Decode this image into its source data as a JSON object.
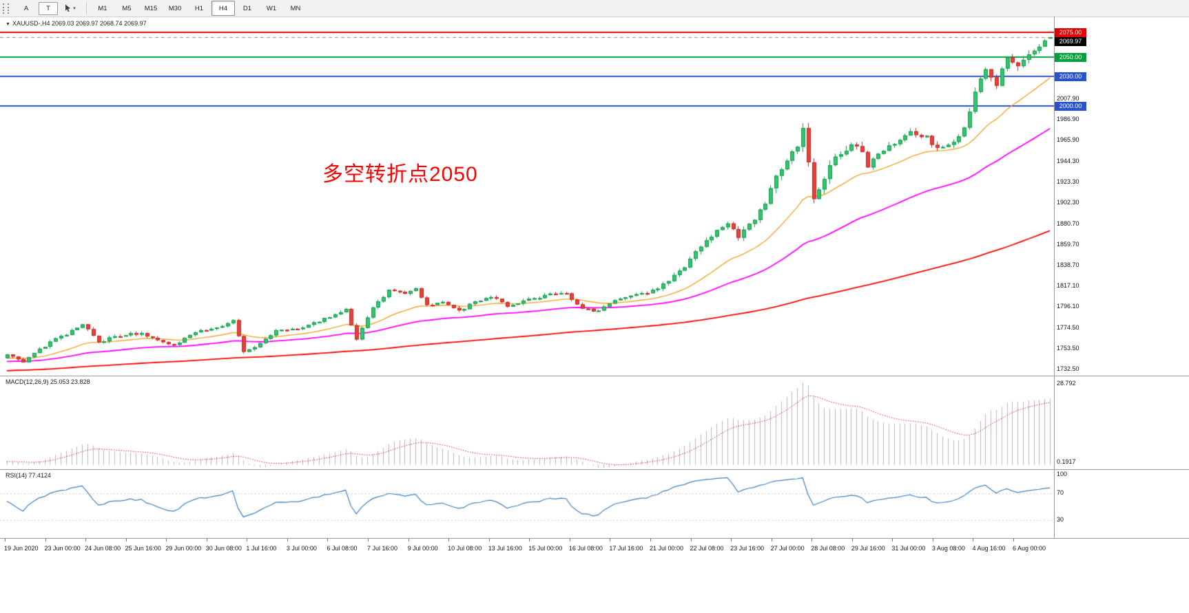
{
  "toolbar": {
    "tools": {
      "a_label": "A",
      "t_label": "T"
    },
    "timeframes": [
      "M1",
      "M5",
      "M15",
      "M30",
      "H1",
      "H4",
      "D1",
      "W1",
      "MN"
    ],
    "active_timeframe": "H4"
  },
  "header": {
    "marker": "▼",
    "symbol_ohlc": "XAUUSD-,H4  2069.03 2069.97 2068.74 2069.97"
  },
  "annotation": {
    "text": "多空转折点2050",
    "color": "#ff0000"
  },
  "macd_panel": {
    "header": "MACD(12,26,9) 25.053 23.828",
    "axis_labels": {
      "top": "28.792",
      "bottom": "0.1917"
    }
  },
  "rsi_panel": {
    "header": "RSI(14) 77.4124",
    "axis_labels": [
      "100",
      "70",
      "30"
    ]
  },
  "chart_data": {
    "type": "candlestick",
    "symbol": "XAUUSD-",
    "timeframe": "H4",
    "title": "XAUUSD- H4 chart with MACD and RSI",
    "grid": false,
    "ylim": [
      1726,
      2091
    ],
    "current_bar": {
      "open": 2069.03,
      "high": 2069.97,
      "low": 2068.74,
      "close": 2069.97
    },
    "current_price": {
      "price": 2069.97,
      "label": "2069.97",
      "badge_color": "#000000"
    },
    "levels": [
      {
        "price": 2075.0,
        "label": "2075.00",
        "color": "#e00000"
      },
      {
        "price": 2050.0,
        "label": "2050.00",
        "color": "#00a13a"
      },
      {
        "price": 2030.0,
        "label": "2030.00",
        "color": "#2a52cc"
      },
      {
        "price": 2000.0,
        "label": "2000.00",
        "color": "#2a52cc"
      }
    ],
    "price_axis_labels": [
      "2007.90",
      "1986.90",
      "1965.90",
      "1944.30",
      "1923.30",
      "1902.30",
      "1880.70",
      "1859.70",
      "1838.70",
      "1817.10",
      "1796.10",
      "1774.50",
      "1753.50",
      "1732.50"
    ],
    "x_labels": [
      "19 Jun 2020",
      "23 Jun 00:00",
      "24 Jun 08:00",
      "25 Jun 16:00",
      "29 Jun 00:00",
      "30 Jun 08:00",
      "1 Jul 16:00",
      "3 Jul 00:00",
      "6 Jul 08:00",
      "7 Jul 16:00",
      "9 Jul 00:00",
      "10 Jul 08:00",
      "13 Jul 16:00",
      "15 Jul 00:00",
      "16 Jul 08:00",
      "17 Jul 16:00",
      "21 Jul 00:00",
      "22 Jul 08:00",
      "23 Jul 16:00",
      "27 Jul 00:00",
      "28 Jul 08:00",
      "29 Jul 16:00",
      "31 Jul 00:00",
      "3 Aug 08:00",
      "4 Aug 16:00",
      "6 Aug 00:00"
    ],
    "num_candles": 195,
    "close_anchors": [
      [
        0,
        1747
      ],
      [
        3,
        1740
      ],
      [
        8,
        1760
      ],
      [
        12,
        1771
      ],
      [
        14,
        1779
      ],
      [
        17,
        1759
      ],
      [
        20,
        1766
      ],
      [
        25,
        1769
      ],
      [
        28,
        1762
      ],
      [
        31,
        1756
      ],
      [
        35,
        1770
      ],
      [
        40,
        1777
      ],
      [
        42,
        1783
      ],
      [
        44,
        1749
      ],
      [
        47,
        1758
      ],
      [
        50,
        1771
      ],
      [
        55,
        1775
      ],
      [
        58,
        1781
      ],
      [
        61,
        1788
      ],
      [
        63,
        1793
      ],
      [
        65,
        1763
      ],
      [
        68,
        1794
      ],
      [
        71,
        1812
      ],
      [
        74,
        1809
      ],
      [
        76,
        1815
      ],
      [
        78,
        1797
      ],
      [
        81,
        1801
      ],
      [
        84,
        1791
      ],
      [
        87,
        1801
      ],
      [
        90,
        1806
      ],
      [
        93,
        1797
      ],
      [
        97,
        1803
      ],
      [
        101,
        1808
      ],
      [
        104,
        1809
      ],
      [
        107,
        1794
      ],
      [
        110,
        1791
      ],
      [
        113,
        1803
      ],
      [
        117,
        1808
      ],
      [
        120,
        1812
      ],
      [
        123,
        1822
      ],
      [
        126,
        1836
      ],
      [
        129,
        1858
      ],
      [
        132,
        1874
      ],
      [
        134,
        1882
      ],
      [
        136,
        1866
      ],
      [
        139,
        1886
      ],
      [
        141,
        1900
      ],
      [
        143,
        1928
      ],
      [
        145,
        1944
      ],
      [
        147,
        1958
      ],
      [
        148,
        1975
      ],
      [
        150,
        1908
      ],
      [
        152,
        1926
      ],
      [
        154,
        1950
      ],
      [
        156,
        1956
      ],
      [
        158,
        1962
      ],
      [
        160,
        1940
      ],
      [
        162,
        1952
      ],
      [
        165,
        1962
      ],
      [
        168,
        1974
      ],
      [
        171,
        1968
      ],
      [
        173,
        1957
      ],
      [
        176,
        1964
      ],
      [
        178,
        1978
      ],
      [
        180,
        2016
      ],
      [
        182,
        2038
      ],
      [
        184,
        2022
      ],
      [
        186,
        2049
      ],
      [
        188,
        2038
      ],
      [
        190,
        2055
      ],
      [
        192,
        2060
      ],
      [
        194,
        2070
      ]
    ],
    "volatility_anchors": [
      [
        0,
        2.6
      ],
      [
        118,
        2.6
      ],
      [
        126,
        4.0
      ],
      [
        140,
        4.5
      ],
      [
        144,
        7.0
      ],
      [
        158,
        7.0
      ],
      [
        162,
        4.5
      ],
      [
        176,
        4.5
      ],
      [
        179,
        6.5
      ],
      [
        194,
        5.5
      ]
    ],
    "moving_averages": [
      {
        "name": "ma-fast",
        "type": "ema",
        "period": 21,
        "color_key": "ma_fast",
        "width": 1.4
      },
      {
        "name": "ma-mid",
        "type": "ema",
        "period": 55,
        "color_key": "ma_mid",
        "width": 1.8
      },
      {
        "name": "ma-slow",
        "type": "sma",
        "period": 144,
        "color_key": "ma_slow",
        "width": 1.8
      }
    ],
    "indicators": {
      "macd": {
        "fast": 12,
        "slow": 26,
        "signal": 9
      },
      "rsi": {
        "period": 14
      }
    },
    "colors": {
      "background": "#ffffff",
      "up_fill": "#35c46f",
      "up_border": "#149a4e",
      "down_fill": "#e5423b",
      "down_border": "#c8251f",
      "ma_fast": "#efa62a",
      "ma_mid": "#ff00ff",
      "ma_slow": "#ff0000",
      "macd_bars": "#b4b4b4",
      "macd_signal": "#dd2222",
      "rsi_line": "#3b7fc4"
    }
  }
}
